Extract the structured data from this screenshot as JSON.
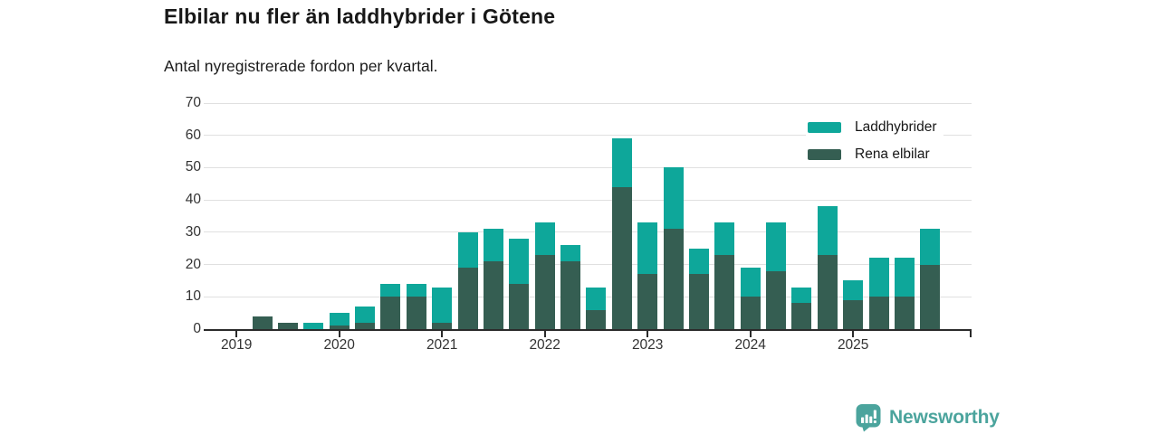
{
  "title": "Elbilar nu fler än laddhybrider i Götene",
  "subtitle": "Antal nyregistrerade fordon per kvartal.",
  "footer": {
    "brand": "Newsworthy"
  },
  "colors": {
    "laddhybrider": "#0ea79a",
    "rena_elbilar": "#355e52",
    "axis": "#2b2b2b",
    "gridline": "#e0e0e0",
    "tick_label": "#333333",
    "brand": "#4ba49d"
  },
  "chart_data": {
    "type": "bar",
    "stacked": true,
    "title": "Elbilar nu fler än laddhybrider i Götene",
    "subtitle": "Antal nyregistrerade fordon per kvartal.",
    "grid": "horizontal",
    "legend_position": "top-right",
    "ylim": [
      0,
      70
    ],
    "yticks": [
      0,
      10,
      20,
      30,
      40,
      50,
      60,
      70
    ],
    "x_year_ticks": [
      "2019",
      "2020",
      "2021",
      "2022",
      "2023",
      "2024",
      "2025"
    ],
    "categories": [
      "2019 Q2",
      "2019 Q3",
      "2019 Q4",
      "2020 Q1",
      "2020 Q2",
      "2020 Q3",
      "2020 Q4",
      "2021 Q1",
      "2021 Q2",
      "2021 Q3",
      "2021 Q4",
      "2022 Q1",
      "2022 Q2",
      "2022 Q3",
      "2022 Q4",
      "2023 Q1",
      "2023 Q2",
      "2023 Q3",
      "2023 Q4",
      "2024 Q1",
      "2024 Q2",
      "2024 Q3",
      "2024 Q4",
      "2025 Q1",
      "2025 Q2",
      "2025 Q3",
      "2025 Q4"
    ],
    "series": [
      {
        "name": "Laddhybrider",
        "color": "#0ea79a",
        "values": [
          0,
          0,
          2,
          4,
          5,
          4,
          4,
          11,
          11,
          10,
          14,
          10,
          5,
          7,
          15,
          16,
          19,
          8,
          10,
          9,
          15,
          5,
          15,
          6,
          12,
          12,
          11
        ]
      },
      {
        "name": "Rena elbilar",
        "color": "#355e52",
        "values": [
          4,
          2,
          0,
          1,
          2,
          10,
          10,
          2,
          19,
          21,
          14,
          23,
          21,
          6,
          44,
          17,
          31,
          17,
          23,
          10,
          18,
          8,
          23,
          9,
          10,
          10,
          20
        ]
      }
    ],
    "totals": [
      4,
      2,
      2,
      5,
      7,
      14,
      14,
      13,
      30,
      31,
      28,
      33,
      26,
      13,
      59,
      33,
      50,
      25,
      33,
      19,
      33,
      13,
      38,
      15,
      22,
      22,
      31
    ]
  }
}
